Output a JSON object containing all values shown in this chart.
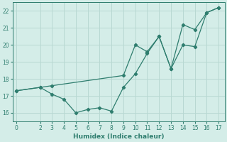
{
  "xlabel": "Humidex (Indice chaleur)",
  "line_color": "#2e7d6e",
  "bg_color": "#d4ede8",
  "grid_color": "#b8d8d2",
  "xlim": [
    -0.3,
    17.5
  ],
  "ylim": [
    15.5,
    22.5
  ],
  "xticks": [
    0,
    2,
    3,
    4,
    5,
    6,
    7,
    8,
    9,
    10,
    11,
    12,
    13,
    14,
    15,
    16,
    17
  ],
  "yticks": [
    16,
    17,
    18,
    19,
    20,
    21,
    22
  ],
  "line1_x": [
    0,
    2,
    3,
    4,
    5,
    6,
    7,
    8,
    9,
    10,
    11,
    12,
    13,
    14,
    15,
    16,
    17
  ],
  "line1_y": [
    17.3,
    17.5,
    17.1,
    16.8,
    16.0,
    16.2,
    16.3,
    16.1,
    17.5,
    18.3,
    19.5,
    20.5,
    18.6,
    20.0,
    19.9,
    21.9,
    22.2
  ],
  "line2_x": [
    0,
    2,
    3,
    9,
    10,
    11,
    12,
    13,
    14,
    15,
    16,
    17
  ],
  "line2_y": [
    17.3,
    17.5,
    17.6,
    18.2,
    20.0,
    19.6,
    20.5,
    18.6,
    21.2,
    20.9,
    21.9,
    22.2
  ]
}
